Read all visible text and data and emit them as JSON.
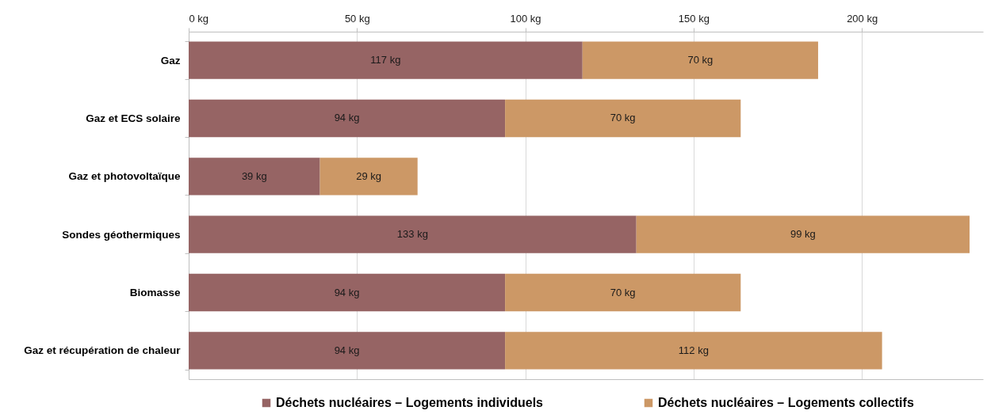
{
  "chart_data": {
    "type": "bar",
    "orientation": "horizontal",
    "stacked": true,
    "categories": [
      "Gaz",
      "Gaz et ECS solaire",
      "Gaz et photovoltaïque",
      "Sondes géothermiques",
      "Biomasse",
      "Gaz et récupération de chaleur"
    ],
    "series": [
      {
        "name": "Déchets nucléaires – Logements individuels",
        "color": "#966464",
        "values": [
          117,
          94,
          39,
          133,
          94,
          94
        ],
        "value_labels": [
          "117 kg",
          "94 kg",
          "39 kg",
          "133 kg",
          "94 kg",
          "94 kg"
        ]
      },
      {
        "name": "Déchets nucléaires – Logements collectifs",
        "color": "#cc9866",
        "values": [
          70,
          70,
          29,
          99,
          70,
          112
        ],
        "value_labels": [
          "70 kg",
          "70 kg",
          "29 kg",
          "99 kg",
          "70 kg",
          "112 kg"
        ]
      }
    ],
    "xlim": [
      0,
      236
    ],
    "xticks": [
      {
        "value": 0,
        "label": "0 kg"
      },
      {
        "value": 50,
        "label": "50 kg"
      },
      {
        "value": 100,
        "label": "100 kg"
      },
      {
        "value": 150,
        "label": "150 kg"
      },
      {
        "value": 200,
        "label": "200 kg"
      }
    ],
    "grid": "x",
    "legend": "bottom"
  }
}
